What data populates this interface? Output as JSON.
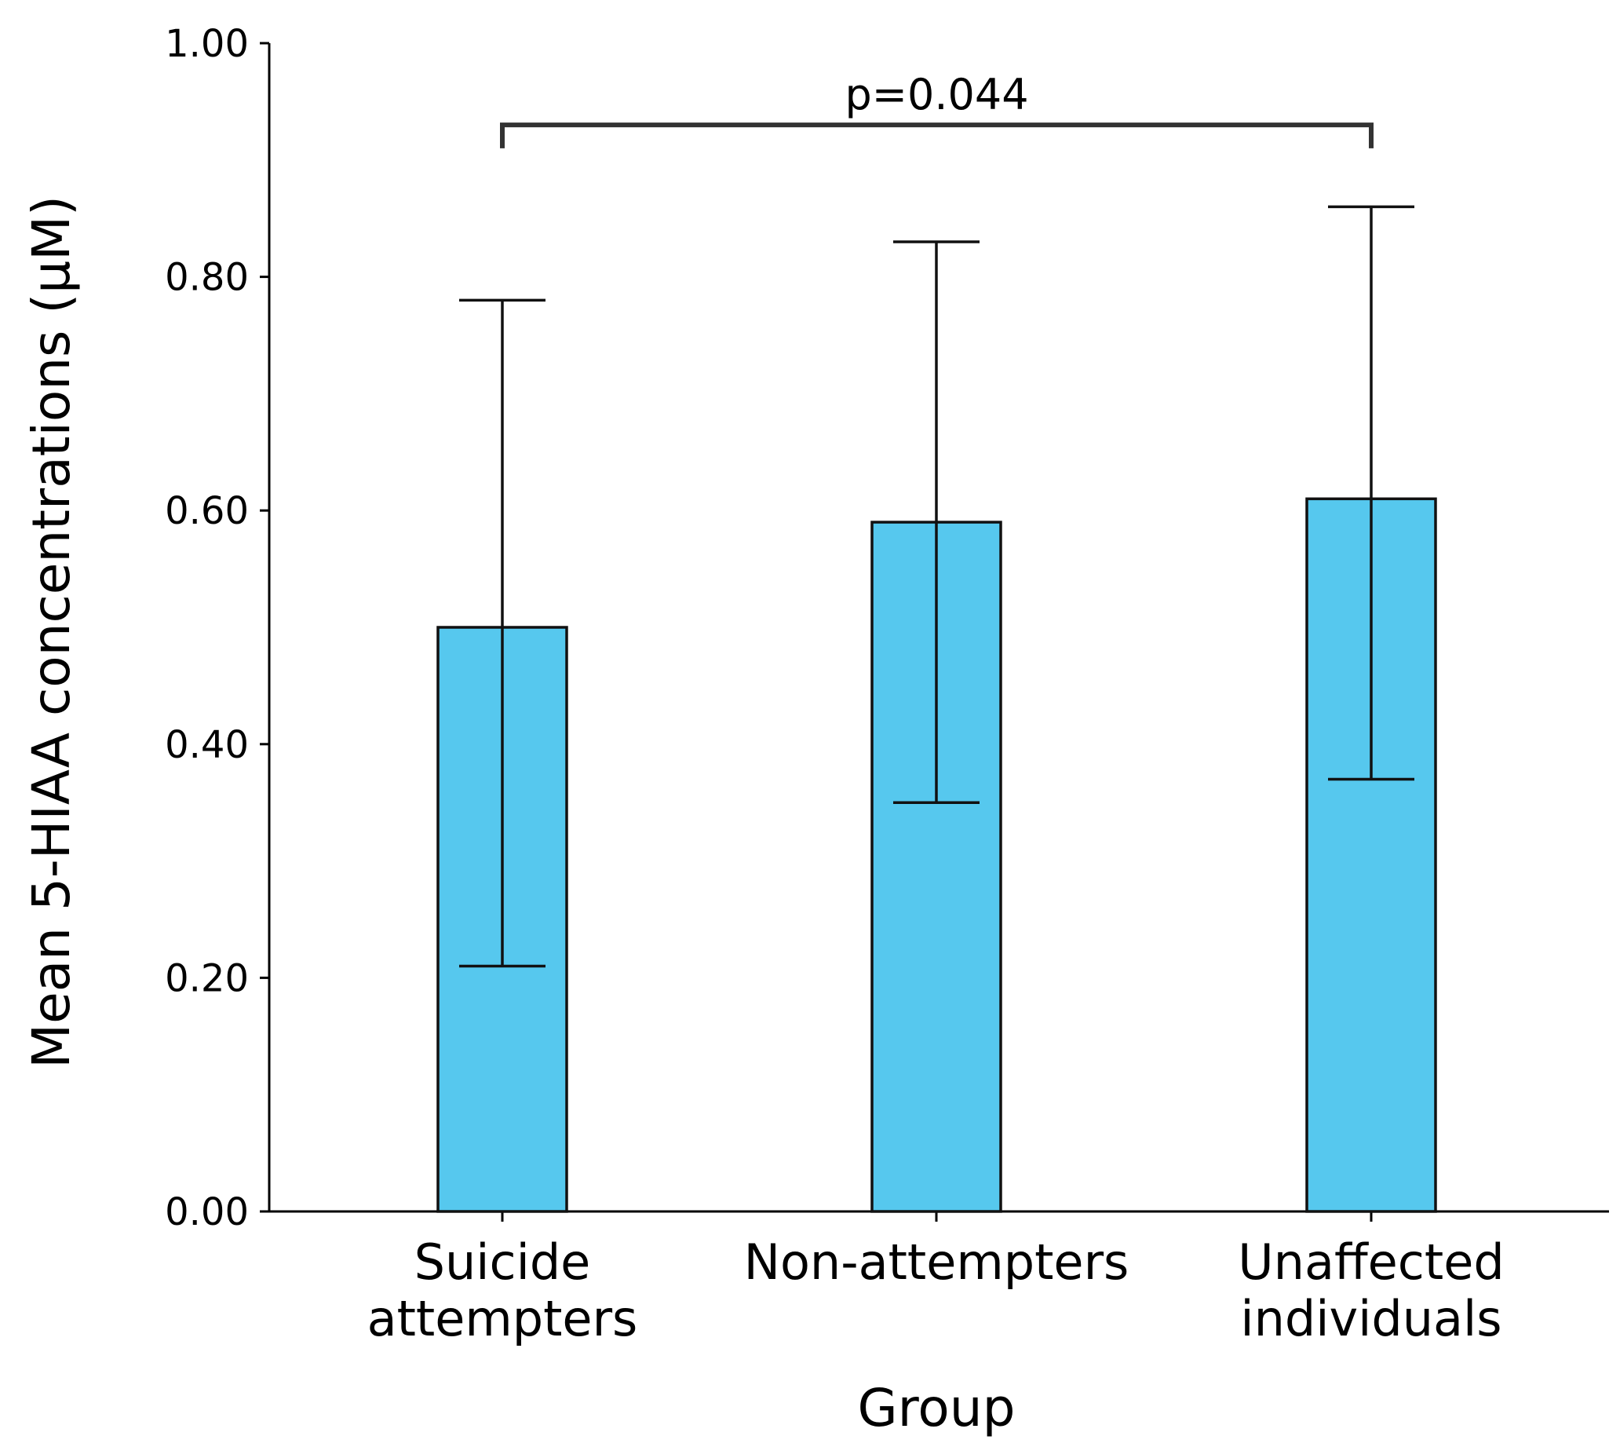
{
  "chart_data": {
    "type": "bar",
    "title": "",
    "categories": [
      [
        "Suicide",
        "attempters"
      ],
      [
        "Non-attempters"
      ],
      [
        "Unaffected",
        "individuals"
      ]
    ],
    "values": [
      0.5,
      0.59,
      0.61
    ],
    "error_low": [
      0.21,
      0.35,
      0.37
    ],
    "error_high": [
      0.78,
      0.83,
      0.86
    ],
    "xlabel": "Group",
    "ylabel": "Mean 5-HIAA concentrations (μM)",
    "ylim": [
      0,
      1.0
    ],
    "yticks": [
      "0.00",
      "0.20",
      "0.40",
      "0.60",
      "0.80",
      "1.00"
    ],
    "ytick_values": [
      0,
      0.2,
      0.4,
      0.6,
      0.8,
      1.0
    ],
    "grid": false,
    "bar_color": "#56C8EE",
    "edge_color": "#111111",
    "annotation": {
      "text": "p=0.044",
      "from_category": 0,
      "to_category": 2,
      "bracket_y": 0.93,
      "bracket_drop": 0.02,
      "bracket_color": "#333333"
    }
  }
}
